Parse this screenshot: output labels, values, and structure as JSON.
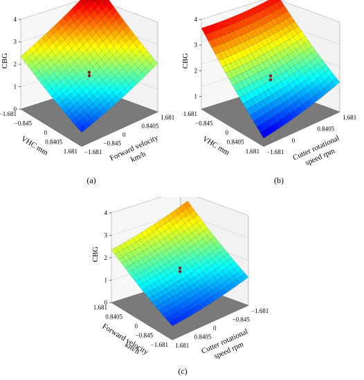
{
  "chart_data": [
    {
      "type": "surface3d",
      "panel_label": "(a)",
      "zlabel": "CBG",
      "xlabel": "VHC mm",
      "ylabel_lines": [
        "Forward velocity",
        "km/h"
      ],
      "z_ticks": [
        "0",
        "1",
        "2",
        "3",
        "4"
      ],
      "x_ticks": [
        "−1.681",
        "−0.845",
        "0",
        "0.8405",
        "1.681"
      ],
      "y_ticks": [
        "−1.681",
        "−0.845",
        "0",
        "0.8405",
        "1.681"
      ],
      "zlim": [
        0,
        4
      ],
      "xlim": [
        -1.681,
        1.681
      ],
      "ylim": [
        -1.681,
        1.681
      ],
      "surface_corners": {
        "back_top": 4.0,
        "left": 2.3,
        "right": 2.1,
        "front": 0.6
      },
      "design_points_z": [
        1.7,
        1.55
      ],
      "colormap": "jet"
    },
    {
      "type": "surface3d",
      "panel_label": "(b)",
      "zlabel": "CBG",
      "xlabel": "VHC mm",
      "ylabel_lines": [
        "Cutter rotational",
        "speed rpm"
      ],
      "z_ticks": [
        "1",
        "2",
        "3",
        "4"
      ],
      "x_ticks": [
        "−1.681",
        "−0.845",
        "0",
        "0.8405",
        "1.681"
      ],
      "y_ticks": [
        "−1.681",
        "0",
        "0.8405",
        "1.681"
      ],
      "zlim": [
        0.5,
        4
      ],
      "xlim": [
        -1.681,
        1.681
      ],
      "ylim": [
        -1.681,
        1.681
      ],
      "surface_corners": {
        "back_top": 3.5,
        "left": 3.6,
        "right": 1.6,
        "front": 0.8
      },
      "design_points_z": [
        1.85,
        1.7
      ],
      "colormap": "jet"
    },
    {
      "type": "surface3d",
      "panel_label": "(c)",
      "zlabel": "CBG",
      "xlabel_lines": [
        "Forward velocity",
        "km/h"
      ],
      "ylabel_lines": [
        "Cutter rotational",
        "speed rpm"
      ],
      "z_ticks": [
        "0",
        "1",
        "2",
        "3",
        "4"
      ],
      "x_ticks": [
        "1.681",
        "0.8405",
        "0",
        "−0.845",
        "−1.681"
      ],
      "y_ticks": [
        "1.681",
        "0.8405",
        "0",
        "−0.845",
        "−1.681"
      ],
      "zlim": [
        0,
        4
      ],
      "xlim": [
        -1.681,
        1.681
      ],
      "ylim": [
        -1.681,
        1.681
      ],
      "surface_corners": {
        "back_top": 2.9,
        "left": 2.3,
        "right": 1.2,
        "front": 0.6
      },
      "design_points_z": [
        1.6,
        1.45
      ],
      "colormap": "jet"
    }
  ]
}
